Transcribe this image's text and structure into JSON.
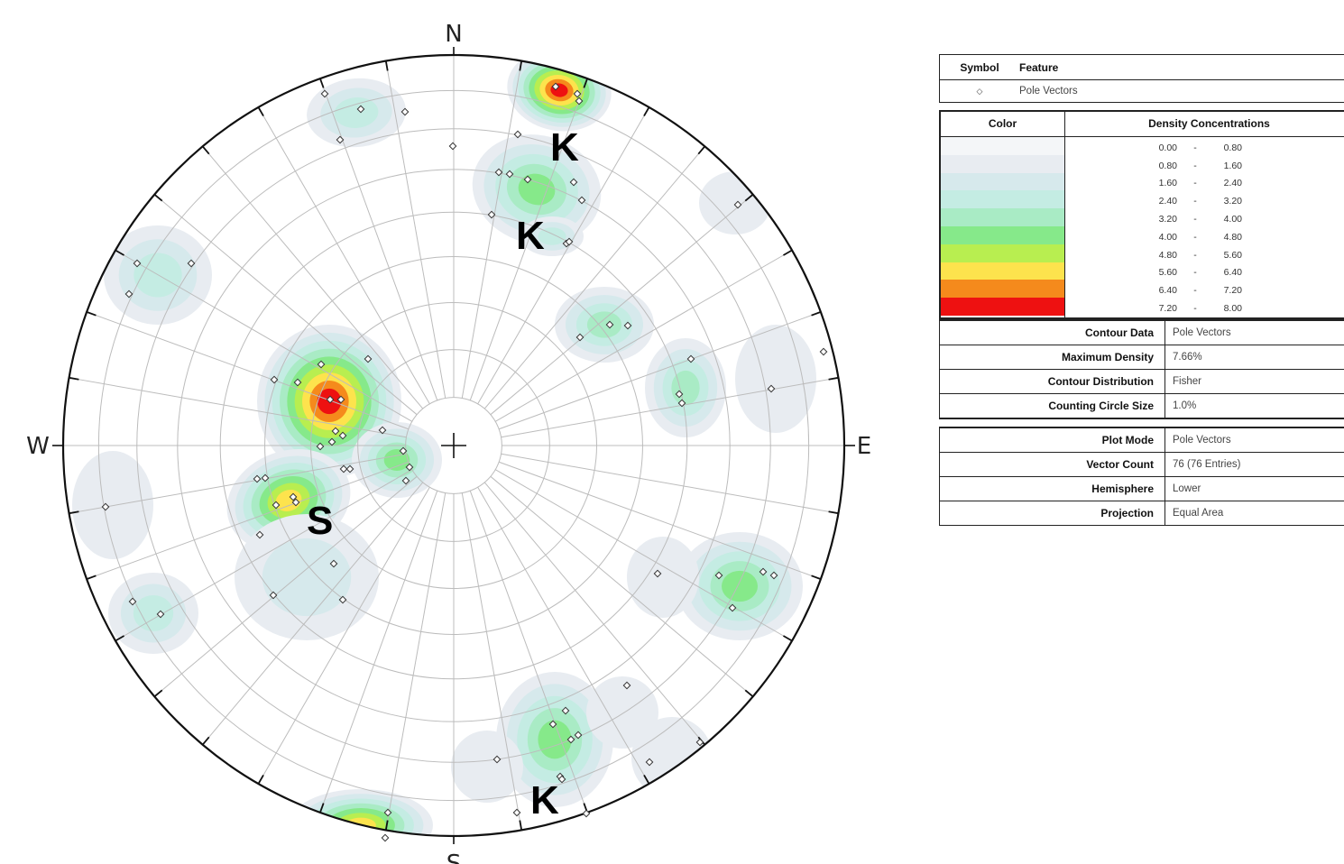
{
  "stereonet": {
    "directions": {
      "north": "N",
      "south": "S",
      "east": "E",
      "west": "W"
    },
    "set_labels": [
      "K",
      "K",
      "S",
      "K"
    ],
    "density_colors": [
      "#ffffff",
      "#e8ecf1",
      "#d6e9ec",
      "#c4ece3",
      "#a9ebc5",
      "#86e98a",
      "#b8ee50",
      "#fde34d",
      "#f58a1c",
      "#ee1111"
    ],
    "pole_vectors_count": 76
  },
  "legend": {
    "symbol_header": "Symbol",
    "feature_header": "Feature",
    "symbol_glyph": "◇",
    "feature_value": "Pole Vectors",
    "color_header": "Color",
    "density_header": "Density Concentrations",
    "ranges": [
      {
        "lo": "0.00",
        "hi": "0.80",
        "color": "#f4f6f8"
      },
      {
        "lo": "0.80",
        "hi": "1.60",
        "color": "#e8ecf1"
      },
      {
        "lo": "1.60",
        "hi": "2.40",
        "color": "#d6e9ec"
      },
      {
        "lo": "2.40",
        "hi": "3.20",
        "color": "#c4ece3"
      },
      {
        "lo": "3.20",
        "hi": "4.00",
        "color": "#a9ebc5"
      },
      {
        "lo": "4.00",
        "hi": "4.80",
        "color": "#86e98a"
      },
      {
        "lo": "4.80",
        "hi": "5.60",
        "color": "#b8ee50"
      },
      {
        "lo": "5.60",
        "hi": "6.40",
        "color": "#fde34d"
      },
      {
        "lo": "6.40",
        "hi": "7.20",
        "color": "#f58a1c"
      },
      {
        "lo": "7.20",
        "hi": "8.00",
        "color": "#ee1111"
      }
    ],
    "range_dash": "-",
    "contour_props": [
      {
        "key": "Contour Data",
        "value": "Pole Vectors"
      },
      {
        "key": "Maximum Density",
        "value": "7.66%"
      },
      {
        "key": "Contour Distribution",
        "value": "Fisher"
      },
      {
        "key": "Counting Circle Size",
        "value": "1.0%"
      }
    ],
    "plot_props": [
      {
        "key": "Plot Mode",
        "value": "Pole Vectors"
      },
      {
        "key": "Vector Count",
        "value": "76 (76 Entries)"
      },
      {
        "key": "Hemisphere",
        "value": "Lower"
      },
      {
        "key": "Projection",
        "value": "Equal Area"
      }
    ]
  }
}
